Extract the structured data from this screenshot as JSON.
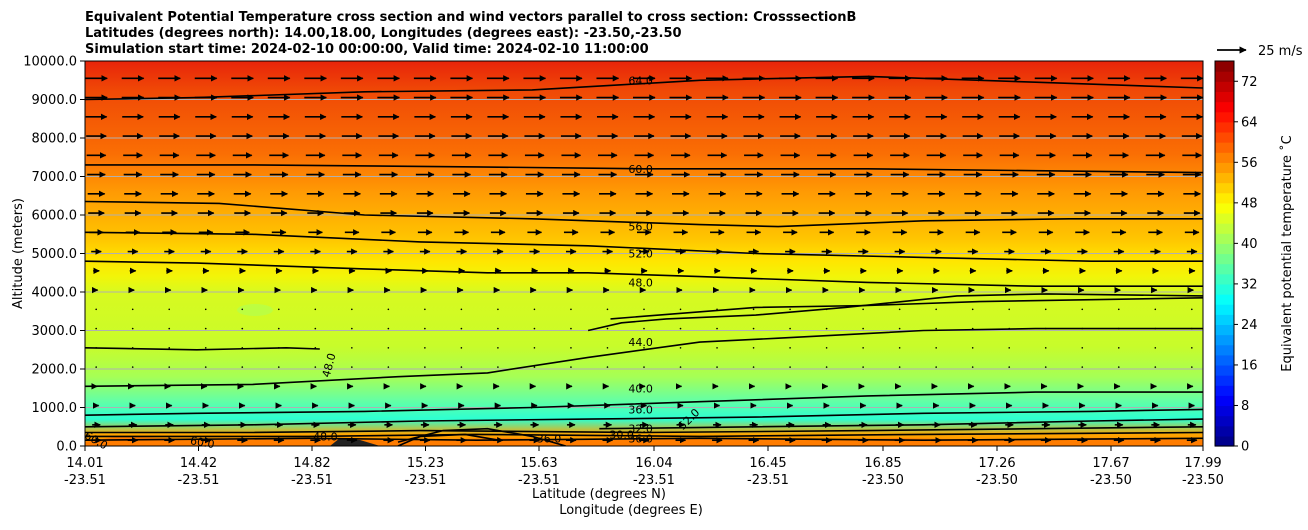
{
  "chart_data": {
    "type": "heatmap",
    "title_lines": [
      "Equivalent Potential Temperature cross section and wind vectors parallel to cross section: CrosssectionB",
      "Latitudes (degrees north): 14.00,18.00, Longitudes (degrees east): -23.50,-23.50",
      "Simulation start time: 2024-02-10 00:00:00, Valid time: 2024-02-10 11:00:00"
    ],
    "ylabel": "Altitude (meters)",
    "xlabel": "Latitude (degrees N)",
    "xlabel2": "Longitude (degrees E)",
    "ylim": [
      0,
      10000
    ],
    "y_ticks": [
      "0.0",
      "1000.0",
      "2000.0",
      "3000.0",
      "4000.0",
      "5000.0",
      "6000.0",
      "7000.0",
      "8000.0",
      "9000.0",
      "10000.0"
    ],
    "x_ticks": [
      {
        "lat": "14.01",
        "lon": "-23.51"
      },
      {
        "lat": "14.42",
        "lon": "-23.51"
      },
      {
        "lat": "14.82",
        "lon": "-23.51"
      },
      {
        "lat": "15.23",
        "lon": "-23.51"
      },
      {
        "lat": "15.63",
        "lon": "-23.51"
      },
      {
        "lat": "16.04",
        "lon": "-23.51"
      },
      {
        "lat": "16.45",
        "lon": "-23.51"
      },
      {
        "lat": "16.85",
        "lon": "-23.50"
      },
      {
        "lat": "17.26",
        "lon": "-23.50"
      },
      {
        "lat": "17.67",
        "lon": "-23.50"
      },
      {
        "lat": "17.99",
        "lon": "-23.50"
      }
    ],
    "colorbar": {
      "label": "Equivalent potential temperature $^\\circ$C",
      "label_display": "Equivalent potential temperature ˚C",
      "range": [
        0,
        76
      ],
      "tick_labels": [
        "0",
        "8",
        "16",
        "24",
        "32",
        "40",
        "48",
        "56",
        "64",
        "72"
      ],
      "colormap": "jet"
    },
    "quiver_key": {
      "label": "25 m/s",
      "value": 25
    },
    "contour_labels": [
      "64.0",
      "60.0",
      "56.0",
      "52.0",
      "48.0",
      "48.0",
      "44.0",
      "40.0",
      "36.0",
      "32.0",
      "30.0",
      "36.0",
      "48.0",
      "60.0",
      "60.0",
      "36.0",
      "52.0"
    ],
    "grid": true
  }
}
